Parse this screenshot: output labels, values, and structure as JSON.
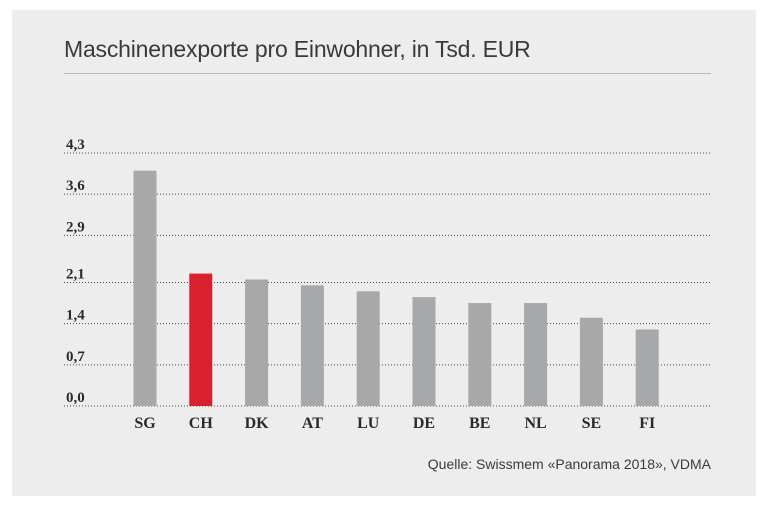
{
  "title": "Maschinenexporte pro Einwohner, in Tsd. EUR",
  "source": "Quelle: Swissmem «Panorama 2018», VDMA",
  "colors": {
    "background": "#ededee",
    "bar_default": "#a7a8aa",
    "bar_highlight": "#da1f2e",
    "gridline": "#4a4a4a"
  },
  "chart_data": {
    "type": "bar",
    "title": "Maschinenexporte pro Einwohner, in Tsd. EUR",
    "categories": [
      "SG",
      "CH",
      "DK",
      "AT",
      "LU",
      "DE",
      "BE",
      "NL",
      "SE",
      "FI"
    ],
    "values": [
      4.0,
      2.25,
      2.15,
      2.05,
      1.95,
      1.85,
      1.75,
      1.75,
      1.5,
      1.3
    ],
    "highlight": "CH",
    "y_ticks": [
      "0,0",
      "0,7",
      "1,4",
      "2,1",
      "2,9",
      "3,6",
      "4,3"
    ],
    "y_tick_values": [
      0.0,
      0.7,
      1.4,
      2.1,
      2.9,
      3.6,
      4.3
    ],
    "ylim": [
      0,
      4.3
    ],
    "xlabel": "",
    "ylabel": "",
    "grid": true,
    "grid_style": "dotted"
  }
}
